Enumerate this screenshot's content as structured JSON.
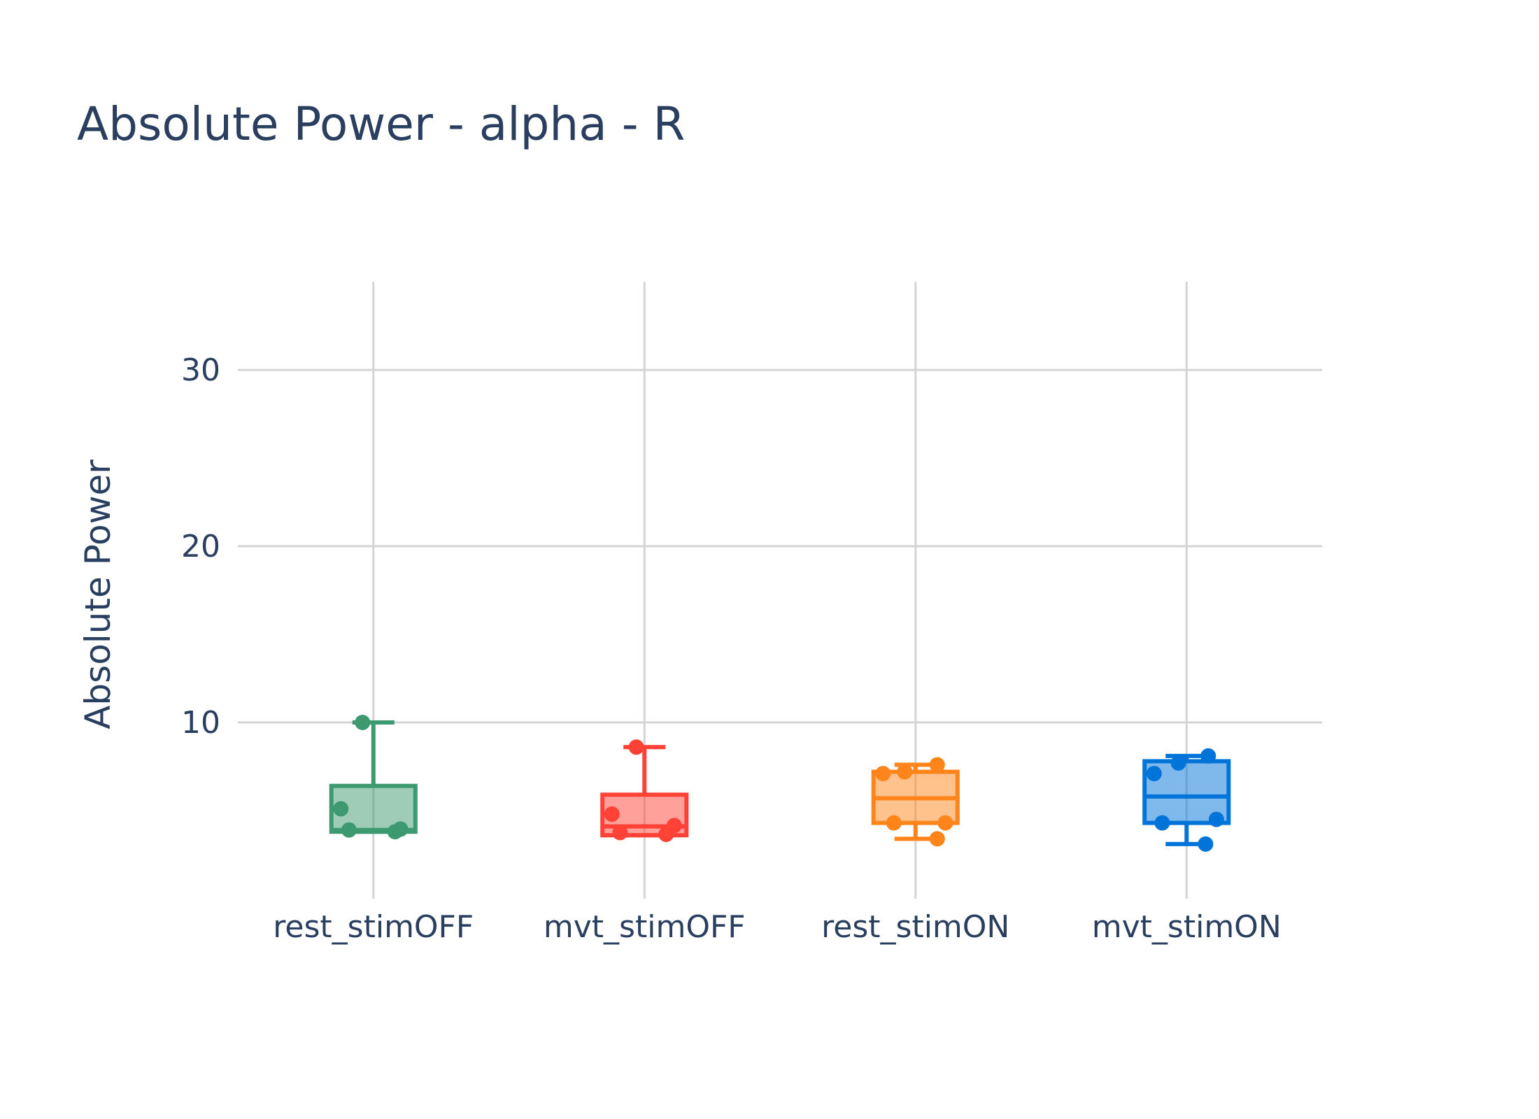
{
  "chart_data": {
    "type": "box",
    "title": "Absolute Power - alpha - R",
    "xlabel": "",
    "ylabel": "Absolute Power",
    "ylim": [
      0,
      35
    ],
    "yticks": [
      10,
      20,
      30
    ],
    "grid": true,
    "legend": "none",
    "categories": [
      "rest_stimOFF",
      "mvt_stimOFF",
      "rest_stimON",
      "mvt_stimON"
    ],
    "series": [
      {
        "name": "rest_stimOFF",
        "color": "#3d9970",
        "fill": "rgba(61,153,112,0.5)",
        "min": 3.8,
        "q1": 3.8,
        "median": 3.9,
        "q3": 6.4,
        "max": 10.0,
        "points": [
          {
            "jitter": -0.12,
            "y": 5.1
          },
          {
            "jitter": -0.09,
            "y": 3.9
          },
          {
            "jitter": 0.08,
            "y": 3.8
          },
          {
            "jitter": 0.1,
            "y": 3.95
          },
          {
            "jitter": -0.04,
            "y": 10.0
          }
        ]
      },
      {
        "name": "mvt_stimOFF",
        "color": "#ff4136",
        "fill": "rgba(255,65,54,0.5)",
        "min": 3.6,
        "q1": 3.6,
        "median": 4.1,
        "q3": 5.9,
        "max": 8.6,
        "points": [
          {
            "jitter": -0.12,
            "y": 4.8
          },
          {
            "jitter": -0.09,
            "y": 3.75
          },
          {
            "jitter": 0.08,
            "y": 3.65
          },
          {
            "jitter": 0.11,
            "y": 4.15
          },
          {
            "jitter": -0.03,
            "y": 8.6
          }
        ]
      },
      {
        "name": "rest_stimON",
        "color": "#ff851b",
        "fill": "rgba(255,133,27,0.5)",
        "min": 3.4,
        "q1": 4.3,
        "median": 5.7,
        "q3": 7.2,
        "max": 7.6,
        "points": [
          {
            "jitter": -0.12,
            "y": 7.1
          },
          {
            "jitter": -0.04,
            "y": 7.2
          },
          {
            "jitter": 0.08,
            "y": 7.6
          },
          {
            "jitter": -0.08,
            "y": 4.3
          },
          {
            "jitter": 0.11,
            "y": 4.3
          },
          {
            "jitter": 0.08,
            "y": 3.4
          }
        ]
      },
      {
        "name": "mvt_stimON",
        "color": "#0074d9",
        "fill": "rgba(0,116,217,0.5)",
        "min": 3.1,
        "q1": 4.3,
        "median": 5.8,
        "q3": 7.8,
        "max": 8.1,
        "points": [
          {
            "jitter": -0.12,
            "y": 7.1
          },
          {
            "jitter": -0.03,
            "y": 7.7
          },
          {
            "jitter": 0.08,
            "y": 8.1
          },
          {
            "jitter": -0.09,
            "y": 4.3
          },
          {
            "jitter": 0.11,
            "y": 4.5
          },
          {
            "jitter": 0.07,
            "y": 3.1
          }
        ]
      }
    ]
  }
}
